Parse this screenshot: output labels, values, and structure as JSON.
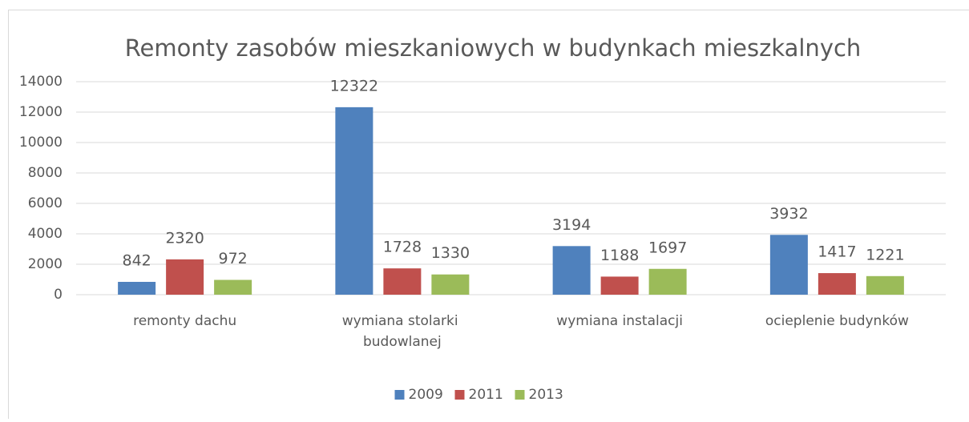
{
  "chart_data": {
    "type": "bar",
    "title": "Remonty zasobów mieszkaniowych w budynkach mieszkalnych",
    "categories": [
      "remonty dachu",
      "wymiana stolarki budowlanej",
      "wymiana instalacji",
      "ocieplenie budynków"
    ],
    "series": [
      {
        "name": "2009",
        "color": "#4f81bd",
        "values": [
          842,
          12322,
          3194,
          3932
        ]
      },
      {
        "name": "2011",
        "color": "#c0504d",
        "values": [
          2320,
          1728,
          1188,
          1417
        ]
      },
      {
        "name": "2013",
        "color": "#9bbb59",
        "values": [
          972,
          1330,
          1697,
          1221
        ]
      }
    ],
    "ylim": [
      0,
      14000
    ],
    "yticks": [
      0,
      2000,
      4000,
      6000,
      8000,
      10000,
      12000,
      14000
    ],
    "grid": true,
    "legend": "bottom"
  }
}
